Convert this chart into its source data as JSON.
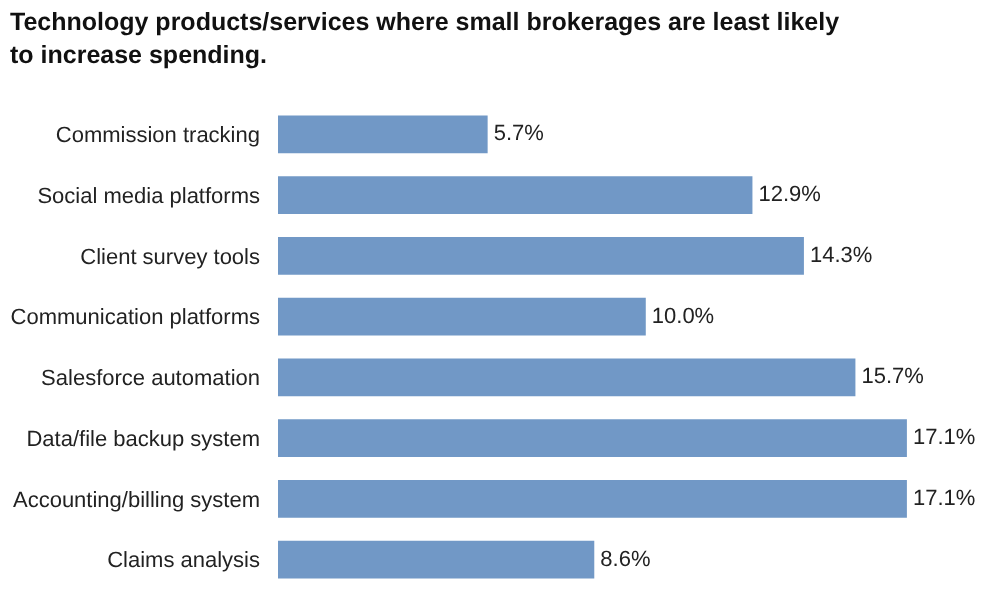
{
  "chart_data": {
    "type": "bar",
    "orientation": "horizontal",
    "title": "Technology products/services where small brokerages are least likely to increase spending.",
    "categories": [
      "Commission tracking",
      "Social media platforms",
      "Client survey tools",
      "Communication platforms",
      "Salesforce automation",
      "Data/file backup system",
      "Accounting/billing system",
      "Claims analysis"
    ],
    "values": [
      5.7,
      12.9,
      14.3,
      10.0,
      15.7,
      17.1,
      17.1,
      8.6
    ],
    "value_labels": [
      "5.7%",
      "12.9%",
      "14.3%",
      "10.0%",
      "15.7%",
      "17.1%",
      "17.1%",
      "8.6%"
    ],
    "color": "#7198c6"
  }
}
